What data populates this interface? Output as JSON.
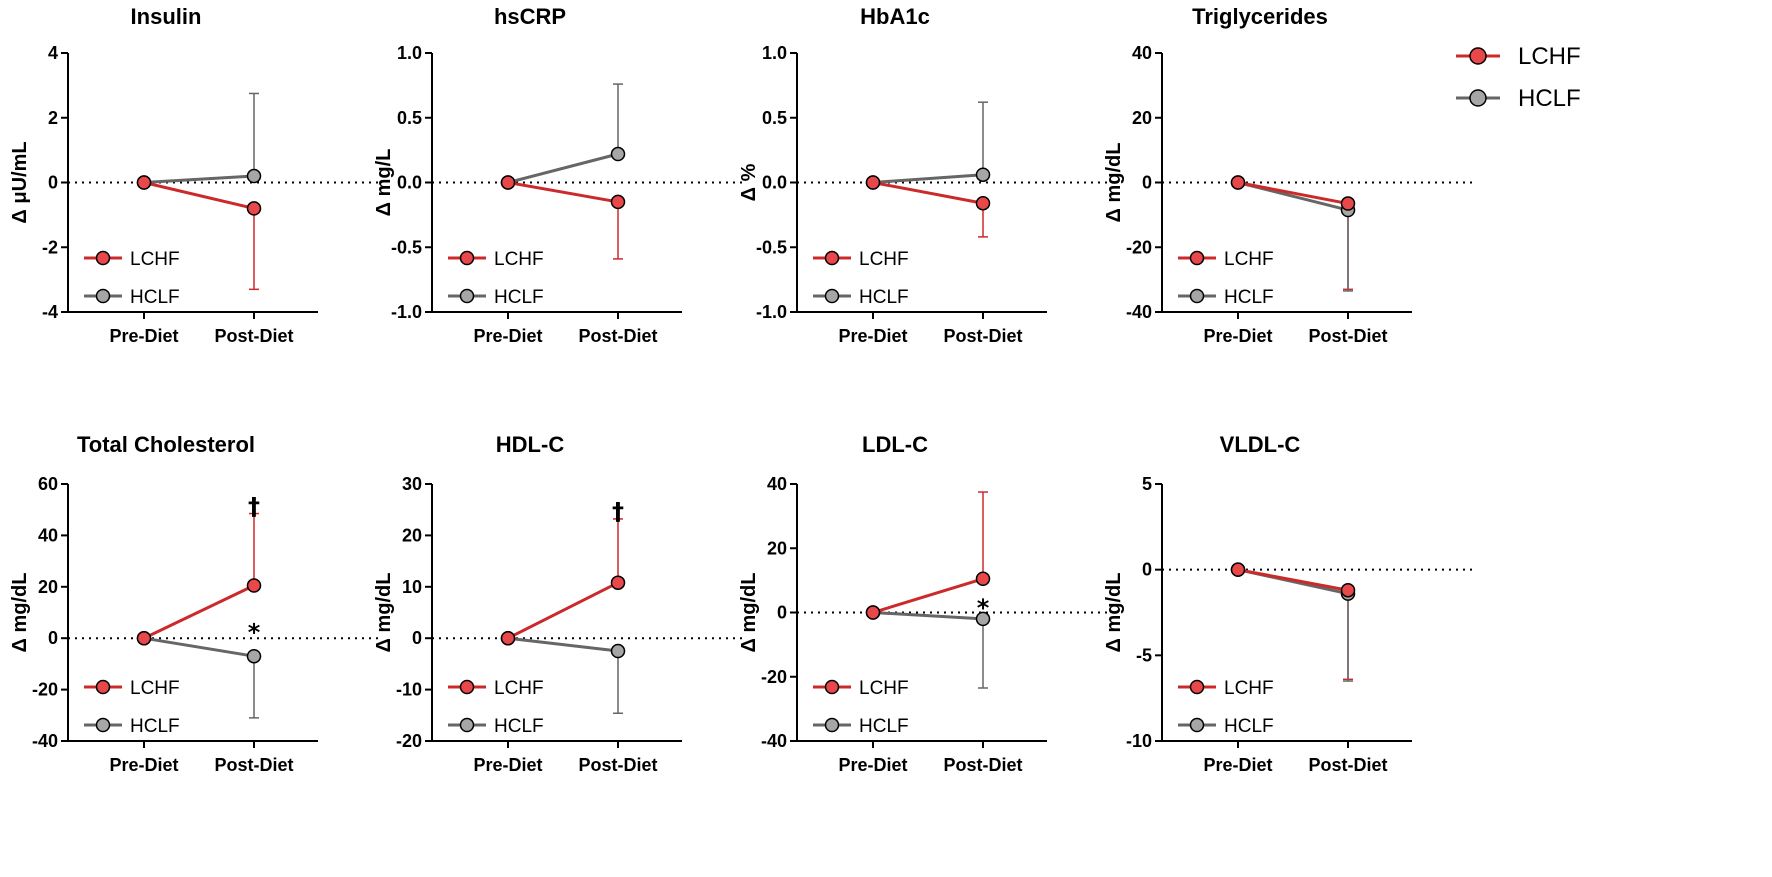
{
  "legend": {
    "entries": [
      {
        "name": "LCHF",
        "color": "#cc2a2a",
        "marker_fill": "#e8484a"
      },
      {
        "name": "HCLF",
        "color": "#666666",
        "marker_fill": "#a6a6a6"
      }
    ]
  },
  "chart_data": [
    {
      "type": "line",
      "title": "Insulin",
      "ylabel": "Δ μU/mL",
      "categories": [
        "Pre-Diet",
        "Post-Diet"
      ],
      "ylim": [
        -4,
        4
      ],
      "yticks": [
        -4,
        -2,
        0,
        2,
        4
      ],
      "series": [
        {
          "name": "LCHF",
          "values": [
            0,
            -0.8
          ],
          "error": [
            0,
            2.5
          ]
        },
        {
          "name": "HCLF",
          "values": [
            0,
            0.2
          ],
          "error": [
            0,
            2.55
          ]
        }
      ],
      "annotations": []
    },
    {
      "type": "line",
      "title": "hsCRP",
      "ylabel": "Δ mg/L",
      "categories": [
        "Pre-Diet",
        "Post-Diet"
      ],
      "ylim": [
        -1.0,
        1.0
      ],
      "yticks": [
        -1.0,
        -0.5,
        0.0,
        0.5,
        1.0
      ],
      "tick_decimals": 1,
      "series": [
        {
          "name": "LCHF",
          "values": [
            0,
            -0.15
          ],
          "error": [
            0,
            0.44
          ]
        },
        {
          "name": "HCLF",
          "values": [
            0,
            0.22
          ],
          "error": [
            0,
            0.54
          ]
        }
      ],
      "annotations": []
    },
    {
      "type": "line",
      "title": "HbA1c",
      "ylabel": "Δ %",
      "categories": [
        "Pre-Diet",
        "Post-Diet"
      ],
      "ylim": [
        -1.0,
        1.0
      ],
      "yticks": [
        -1.0,
        -0.5,
        0.0,
        0.5,
        1.0
      ],
      "tick_decimals": 1,
      "series": [
        {
          "name": "LCHF",
          "values": [
            0,
            -0.16
          ],
          "error": [
            0,
            0.26
          ]
        },
        {
          "name": "HCLF",
          "values": [
            0,
            0.06
          ],
          "error": [
            0,
            0.56
          ]
        }
      ],
      "annotations": []
    },
    {
      "type": "line",
      "title": "Triglycerides",
      "ylabel": "Δ mg/dL",
      "categories": [
        "Pre-Diet",
        "Post-Diet"
      ],
      "ylim": [
        -40,
        40
      ],
      "yticks": [
        -40,
        -20,
        0,
        20,
        40
      ],
      "series": [
        {
          "name": "LCHF",
          "values": [
            0,
            -6.5
          ],
          "error": [
            0,
            26.5
          ]
        },
        {
          "name": "HCLF",
          "values": [
            0,
            -8.5
          ],
          "error": [
            0,
            25
          ]
        }
      ],
      "annotations": []
    },
    {
      "type": "line",
      "title": "Total Cholesterol",
      "ylabel": "Δ mg/dL",
      "categories": [
        "Pre-Diet",
        "Post-Diet"
      ],
      "ylim": [
        -40,
        60
      ],
      "yticks": [
        -40,
        -20,
        0,
        20,
        40,
        60
      ],
      "series": [
        {
          "name": "LCHF",
          "values": [
            0,
            20.5
          ],
          "error": [
            0,
            28
          ]
        },
        {
          "name": "HCLF",
          "values": [
            0,
            -7
          ],
          "error": [
            0,
            24
          ]
        }
      ],
      "annotations": [
        {
          "text": "†",
          "x": "Post-Diet",
          "y": 52
        },
        {
          "text": "*",
          "x": "Post-Diet",
          "y": 3
        }
      ]
    },
    {
      "type": "line",
      "title": "HDL-C",
      "ylabel": "Δ mg/dL",
      "categories": [
        "Pre-Diet",
        "Post-Diet"
      ],
      "ylim": [
        -20,
        30
      ],
      "yticks": [
        -20,
        -10,
        0,
        10,
        20,
        30
      ],
      "series": [
        {
          "name": "LCHF",
          "values": [
            0,
            10.8
          ],
          "error": [
            0,
            12.4
          ]
        },
        {
          "name": "HCLF",
          "values": [
            0,
            -2.5
          ],
          "error": [
            0,
            12.1
          ]
        }
      ],
      "annotations": [
        {
          "text": "†",
          "x": "Post-Diet",
          "y": 25
        }
      ]
    },
    {
      "type": "line",
      "title": "LDL-C",
      "ylabel": "Δ mg/dL",
      "categories": [
        "Pre-Diet",
        "Post-Diet"
      ],
      "ylim": [
        -40,
        40
      ],
      "yticks": [
        -40,
        -20,
        0,
        20,
        40
      ],
      "series": [
        {
          "name": "LCHF",
          "values": [
            0,
            10.5
          ],
          "error": [
            0,
            27
          ]
        },
        {
          "name": "HCLF",
          "values": [
            0,
            -2
          ],
          "error": [
            0,
            21.5
          ]
        }
      ],
      "annotations": [
        {
          "text": "*",
          "x": "Post-Diet",
          "y": 2
        }
      ]
    },
    {
      "type": "line",
      "title": "VLDL-C",
      "ylabel": "Δ mg/dL",
      "categories": [
        "Pre-Diet",
        "Post-Diet"
      ],
      "ylim": [
        -10,
        5
      ],
      "yticks": [
        -10,
        -5,
        0,
        5
      ],
      "series": [
        {
          "name": "LCHF",
          "values": [
            0,
            -1.2
          ],
          "error": [
            0,
            5.2
          ]
        },
        {
          "name": "HCLF",
          "values": [
            0,
            -1.4
          ],
          "error": [
            0,
            5.1
          ]
        }
      ],
      "annotations": []
    }
  ]
}
